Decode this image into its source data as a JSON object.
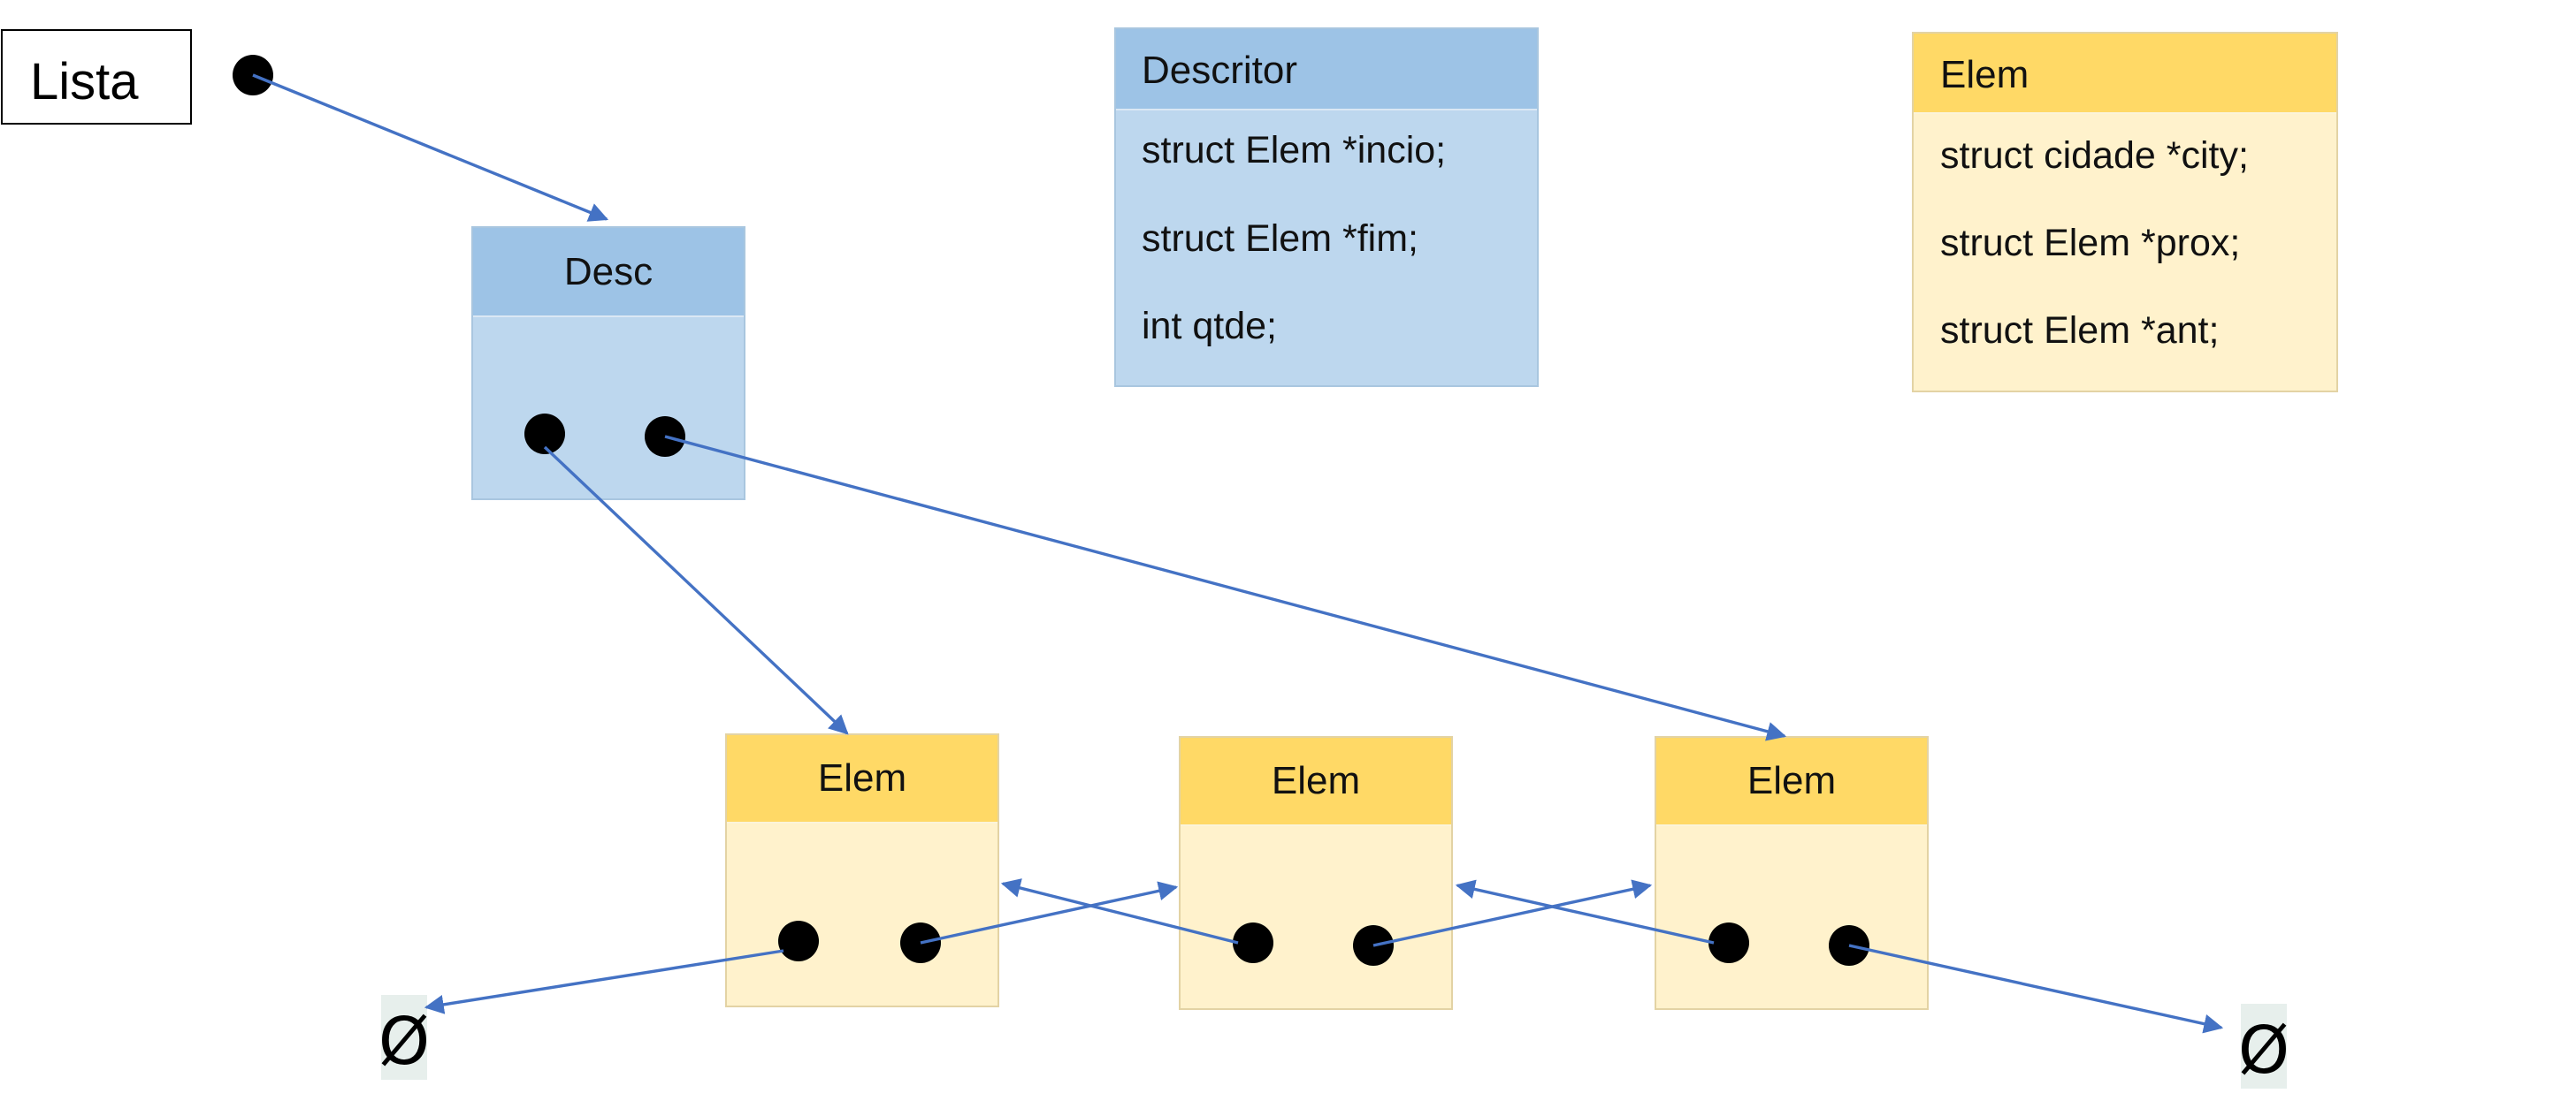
{
  "lista": {
    "label": "Lista"
  },
  "desc_node": {
    "title": "Desc"
  },
  "descritor_struct": {
    "title": "Descritor",
    "fields": [
      "struct Elem *incio;",
      "struct Elem *fim;",
      "int qtde;"
    ]
  },
  "elem_struct": {
    "title": "Elem",
    "fields": [
      "struct cidade *city;",
      "struct Elem *prox;",
      "struct Elem *ant;"
    ]
  },
  "elem_nodes": [
    {
      "title": "Elem"
    },
    {
      "title": "Elem"
    },
    {
      "title": "Elem"
    }
  ],
  "null_left": {
    "symbol": "Ø"
  },
  "null_right": {
    "symbol": "Ø"
  },
  "colors": {
    "arrow": "#4472c4",
    "desc_header": "#9dc3e6",
    "desc_body": "#bdd7ee",
    "elem_header": "#ffd966",
    "elem_body": "#fff2cc"
  }
}
